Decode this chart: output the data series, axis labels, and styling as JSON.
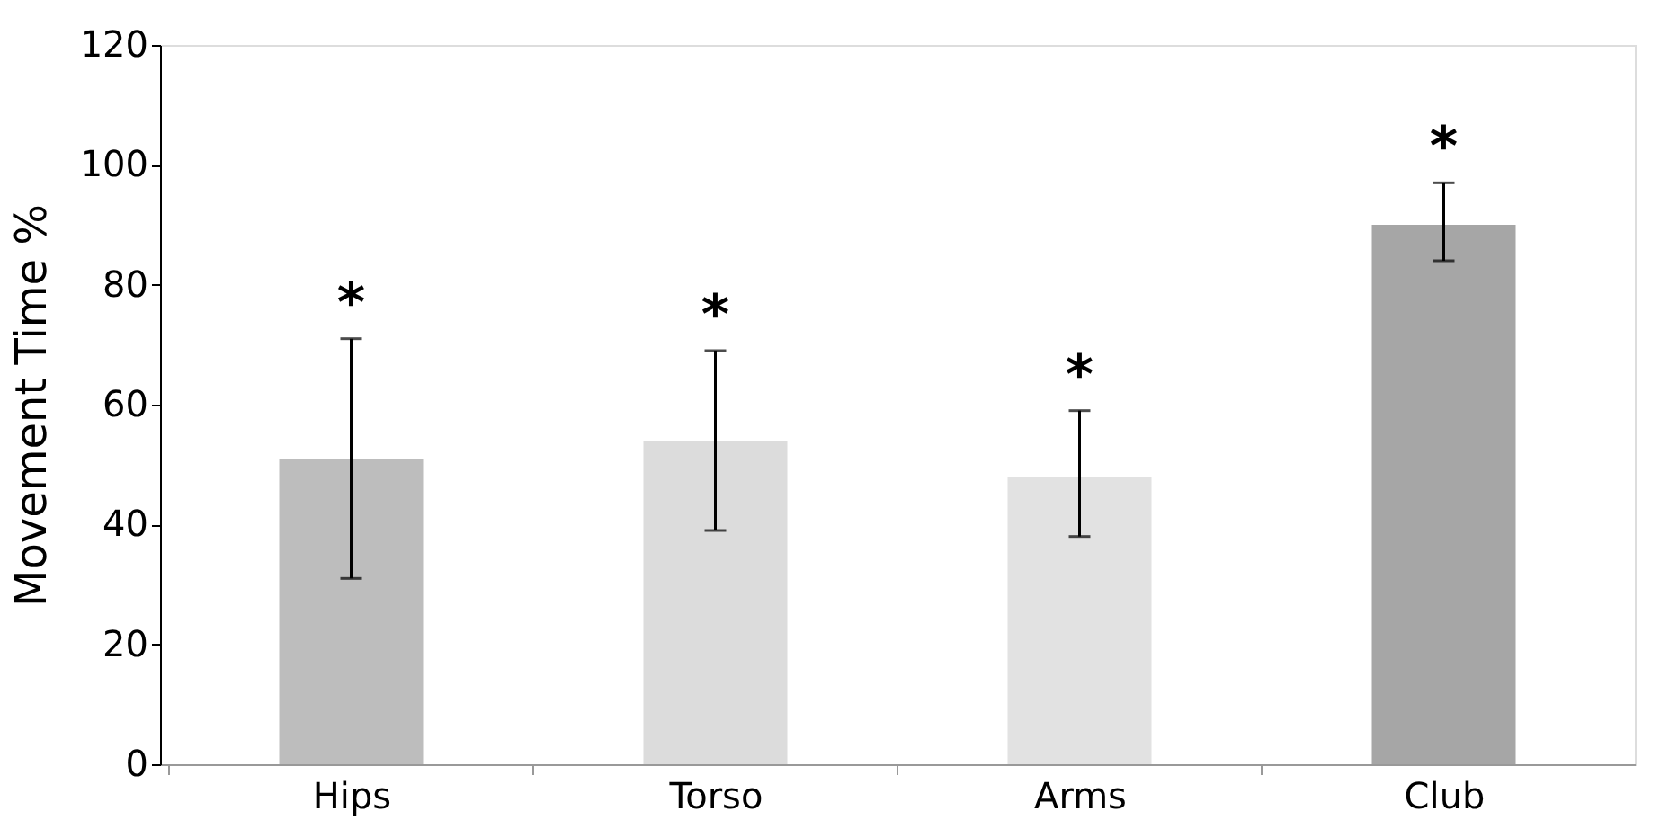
{
  "chart_data": {
    "type": "bar",
    "ylabel": "Movement Time %",
    "categories": [
      "Hips",
      "Torso",
      "Arms",
      "Club"
    ],
    "values": [
      51,
      54,
      48,
      90
    ],
    "colors": [
      "#bdbdbd",
      "#dcdcdc",
      "#e2e2e2",
      "#a6a6a6"
    ],
    "errors": [
      [
        31,
        71
      ],
      [
        39,
        69
      ],
      [
        38,
        59
      ],
      [
        84,
        97
      ]
    ],
    "ylim": [
      0,
      120
    ],
    "yticks": [
      0,
      20,
      40,
      60,
      80,
      100,
      120
    ],
    "grid": false,
    "annotations": [
      "*",
      "*",
      "*",
      "*"
    ]
  }
}
